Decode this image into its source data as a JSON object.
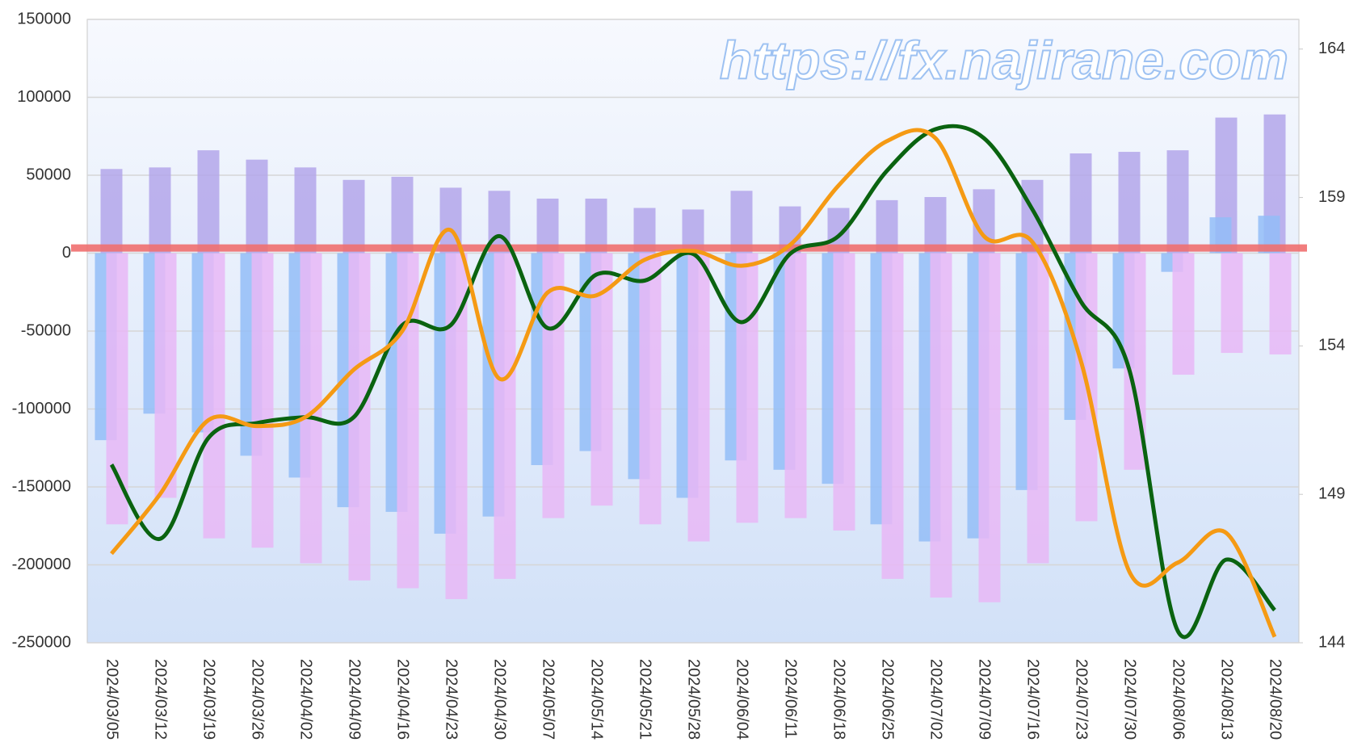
{
  "chart_data": {
    "type": "bar-line",
    "watermark": "https://fx.najirane.com",
    "categories": [
      "2024/03/05",
      "2024/03/12",
      "2024/03/19",
      "2024/03/26",
      "2024/04/02",
      "2024/04/09",
      "2024/04/16",
      "2024/04/23",
      "2024/04/30",
      "2024/05/07",
      "2024/05/14",
      "2024/05/21",
      "2024/05/28",
      "2024/06/04",
      "2024/06/11",
      "2024/06/18",
      "2024/06/25",
      "2024/07/02",
      "2024/07/09",
      "2024/07/16",
      "2024/07/23",
      "2024/07/30",
      "2024/08/06",
      "2024/08/13",
      "2024/08/20"
    ],
    "ylim": [
      -250000,
      150000
    ],
    "yticks": [
      -250000,
      -200000,
      -150000,
      -100000,
      -50000,
      0,
      50000,
      100000,
      150000
    ],
    "y2lim": [
      144,
      165
    ],
    "y2ticks": [
      144,
      149,
      154,
      159,
      164
    ],
    "grid": true,
    "reference_line": {
      "value": 157.3,
      "axis": "y2",
      "color": "#f07070"
    },
    "series": [
      {
        "type": "bar",
        "color": "#b3a6ea",
        "offset": 0,
        "values": [
          54000,
          55000,
          66000,
          60000,
          55000,
          47000,
          49000,
          42000,
          40000,
          35000,
          35000,
          29000,
          28000,
          40000,
          30000,
          29000,
          34000,
          36000,
          41000,
          47000,
          64000,
          65000,
          66000,
          87000,
          89000
        ]
      },
      {
        "type": "bar",
        "color": "#93bdf7",
        "offset": -1,
        "values": [
          -120000,
          -103000,
          -115000,
          -130000,
          -144000,
          -163000,
          -166000,
          -180000,
          -169000,
          -136000,
          -127000,
          -145000,
          -157000,
          -133000,
          -139000,
          -148000,
          -174000,
          -185000,
          -183000,
          -152000,
          -107000,
          -74000,
          -12000,
          23000,
          24000
        ]
      },
      {
        "type": "bar",
        "color": "#e7b7f6",
        "offset": 1,
        "values": [
          -174000,
          -157000,
          -183000,
          -189000,
          -199000,
          -210000,
          -215000,
          -222000,
          -209000,
          -170000,
          -162000,
          -174000,
          -185000,
          -173000,
          -170000,
          -178000,
          -209000,
          -221000,
          -224000,
          -199000,
          -172000,
          -139000,
          -78000,
          -64000,
          -65000
        ]
      },
      {
        "type": "line",
        "axis": "y2",
        "color": "#0a6310",
        "values": [
          150.0,
          147.5,
          150.9,
          151.4,
          151.6,
          151.6,
          154.7,
          154.7,
          157.7,
          154.6,
          156.4,
          156.2,
          157.1,
          154.8,
          157.1,
          157.7,
          159.9,
          161.3,
          161.0,
          158.6,
          155.5,
          153.2,
          144.4,
          146.8,
          145.1
        ]
      },
      {
        "type": "line",
        "axis": "y2",
        "color": "#f59a14",
        "values": [
          147.0,
          149.0,
          151.5,
          151.3,
          151.6,
          153.2,
          154.5,
          157.9,
          152.9,
          155.8,
          155.7,
          156.9,
          157.2,
          156.7,
          157.4,
          159.4,
          160.9,
          161.0,
          157.7,
          157.5,
          153.5,
          146.4,
          146.7,
          147.7,
          144.2
        ]
      }
    ]
  }
}
